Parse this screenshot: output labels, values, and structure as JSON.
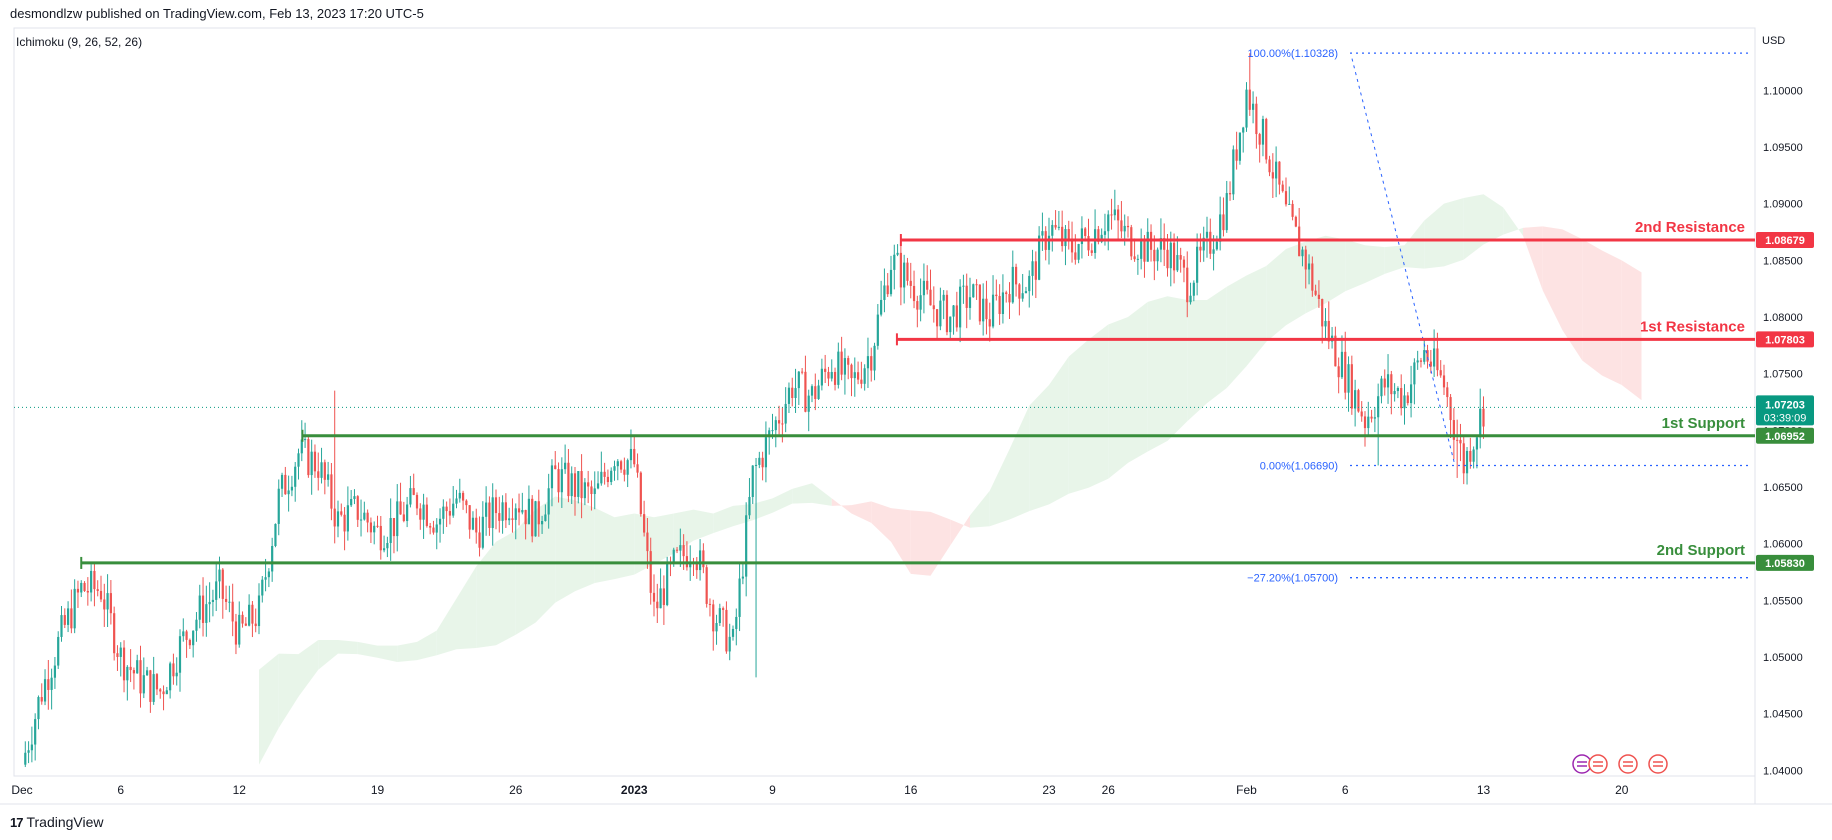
{
  "header": {
    "publisher_line": "desmondlzw published on TradingView.com, Feb 13, 2023 17:20 UTC-5"
  },
  "footer": {
    "brand": "TradingView",
    "logo_glyph": "17"
  },
  "indicator": {
    "label": "Ichimoku (9, 26, 52, 26)"
  },
  "currency": "USD",
  "colors": {
    "up": "#26a69a",
    "down": "#ef5350",
    "resistance": "#f23645",
    "support": "#388e3c",
    "fib": "#2962ff",
    "cloud_bull": "#e8f5e9",
    "cloud_bear": "#fde3e3",
    "last_price": "#089981"
  },
  "chart_data": {
    "type": "candlestick",
    "symbol_quote": "USD",
    "ylim": [
      1.0395,
      1.1055
    ],
    "y_ticks": [
      "1.10000",
      "1.09500",
      "1.09000",
      "1.08500",
      "1.08000",
      "1.07500",
      "1.07000",
      "1.06500",
      "1.06000",
      "1.05500",
      "1.05000",
      "1.04500",
      "1.04000"
    ],
    "x_ticks": [
      {
        "label": "Dec",
        "day": 0
      },
      {
        "label": "6",
        "day": 5
      },
      {
        "label": "12",
        "day": 11
      },
      {
        "label": "19",
        "day": 18
      },
      {
        "label": "26",
        "day": 25
      },
      {
        "label": "2023",
        "day": 31
      },
      {
        "label": "9",
        "day": 38
      },
      {
        "label": "16",
        "day": 45
      },
      {
        "label": "23",
        "day": 52
      },
      {
        "label": "26",
        "day": 55
      },
      {
        "label": "Feb",
        "day": 62
      },
      {
        "label": "6",
        "day": 67
      },
      {
        "label": "13",
        "day": 74
      },
      {
        "label": "20",
        "day": 81
      }
    ],
    "levels": [
      {
        "name": "2nd Resistance",
        "value": 1.08679,
        "value_label": "1.08679",
        "kind": "resistance",
        "start_day": 44.5
      },
      {
        "name": "1st Resistance",
        "value": 1.07803,
        "value_label": "1.07803",
        "kind": "resistance",
        "start_day": 44.3
      },
      {
        "name": "1st Support",
        "value": 1.06952,
        "value_label": "1.06952",
        "kind": "support",
        "start_day": 14.2
      },
      {
        "name": "2nd Support",
        "value": 1.0583,
        "value_label": "1.05830",
        "kind": "support",
        "start_day": 3.0
      }
    ],
    "fibonacci": [
      {
        "label": "100.00%(1.10328)",
        "value": 1.10328
      },
      {
        "label": "0.00%(1.06690)",
        "value": 1.0669
      },
      {
        "label": "−27.20%(1.05700)",
        "value": 1.057
      }
    ],
    "last_price": {
      "value": 1.07203,
      "label": "1.07203",
      "countdown": "03:39:09"
    },
    "closes_by_day": [
      [
        0,
        1.0405
      ],
      [
        1,
        1.047
      ],
      [
        2,
        1.052
      ],
      [
        3,
        1.056
      ],
      [
        4,
        1.056
      ],
      [
        5,
        1.05
      ],
      [
        6,
        1.048
      ],
      [
        7,
        1.047
      ],
      [
        8,
        1.051
      ],
      [
        9,
        1.054
      ],
      [
        10,
        1.056
      ],
      [
        11,
        1.052
      ],
      [
        12,
        1.054
      ],
      [
        13,
        1.064
      ],
      [
        14,
        1.068
      ],
      [
        15,
        1.067
      ],
      [
        16,
        1.062
      ],
      [
        17,
        1.063
      ],
      [
        18,
        1.061
      ],
      [
        19,
        1.062
      ],
      [
        20,
        1.064
      ],
      [
        21,
        1.062
      ],
      [
        22,
        1.064
      ],
      [
        23,
        1.061
      ],
      [
        24,
        1.063
      ],
      [
        25,
        1.064
      ],
      [
        26,
        1.062
      ],
      [
        27,
        1.066
      ],
      [
        28,
        1.065
      ],
      [
        29,
        1.064
      ],
      [
        30,
        1.068
      ],
      [
        31,
        1.067
      ],
      [
        32,
        1.054
      ],
      [
        33,
        1.058
      ],
      [
        34,
        1.06
      ],
      [
        35,
        1.054
      ],
      [
        36,
        1.051
      ],
      [
        37,
        1.066
      ],
      [
        38,
        1.07
      ],
      [
        39,
        1.074
      ],
      [
        40,
        1.073
      ],
      [
        41,
        1.076
      ],
      [
        42,
        1.074
      ],
      [
        43,
        1.077
      ],
      [
        44,
        1.085
      ],
      [
        45,
        1.083
      ],
      [
        46,
        1.081
      ],
      [
        47,
        1.08
      ],
      [
        48,
        1.082
      ],
      [
        49,
        1.08
      ],
      [
        50,
        1.083
      ],
      [
        51,
        1.083
      ],
      [
        52,
        1.088
      ],
      [
        53,
        1.086
      ],
      [
        54,
        1.087
      ],
      [
        55,
        1.089
      ],
      [
        56,
        1.087
      ],
      [
        57,
        1.086
      ],
      [
        58,
        1.086
      ],
      [
        59,
        1.083
      ],
      [
        60,
        1.086
      ],
      [
        61,
        1.09
      ],
      [
        62,
        1.1
      ],
      [
        63,
        1.095
      ],
      [
        64,
        1.089
      ],
      [
        65,
        1.085
      ],
      [
        66,
        1.079
      ],
      [
        67,
        1.075
      ],
      [
        68,
        1.071
      ],
      [
        69,
        1.074
      ],
      [
        70,
        1.073
      ],
      [
        71,
        1.077
      ],
      [
        72,
        1.074
      ],
      [
        73,
        1.067
      ],
      [
        74,
        1.072
      ]
    ]
  }
}
